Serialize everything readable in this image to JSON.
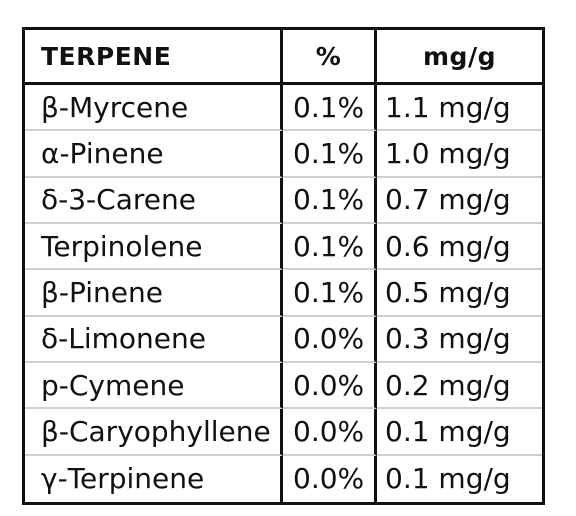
{
  "table": {
    "headers": [
      "TERPENE",
      "%",
      "mg/g"
    ],
    "rows": [
      [
        "β-Myrcene",
        "0.1%",
        "1.1 mg/g"
      ],
      [
        "α-Pinene",
        "0.1%",
        "1.0 mg/g"
      ],
      [
        "δ-3-Carene",
        "0.1%",
        "0.7 mg/g"
      ],
      [
        "Terpinolene",
        "0.1%",
        "0.6 mg/g"
      ],
      [
        "β-Pinene",
        "0.1%",
        "0.5 mg/g"
      ],
      [
        "δ-Limonene",
        "0.0%",
        "0.3 mg/g"
      ],
      [
        "p-Cymene",
        "0.0%",
        "0.2 mg/g"
      ],
      [
        "β-Caryophyllene",
        "0.0%",
        "0.1 mg/g"
      ],
      [
        "γ-Terpinene",
        "0.0%",
        "0.1 mg/g"
      ]
    ]
  }
}
